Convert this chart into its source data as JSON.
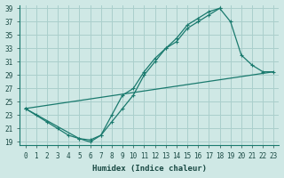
{
  "xlabel": "Humidex (Indice chaleur)",
  "bg_color": "#cfe8e5",
  "grid_color": "#aacfcc",
  "line_color": "#1a7a6e",
  "xlim": [
    -0.5,
    23.5
  ],
  "ylim": [
    18.5,
    39.5
  ],
  "xticks": [
    0,
    1,
    2,
    3,
    4,
    5,
    6,
    7,
    8,
    9,
    10,
    11,
    12,
    13,
    14,
    15,
    16,
    17,
    18,
    19,
    20,
    21,
    22,
    23
  ],
  "yticks": [
    19,
    21,
    23,
    25,
    27,
    29,
    31,
    33,
    35,
    37,
    39
  ],
  "line1_x": [
    0,
    1,
    2,
    3,
    4,
    5,
    6,
    7,
    8,
    9,
    10,
    11,
    12,
    13,
    14,
    15,
    16,
    17,
    18
  ],
  "line1_y": [
    24,
    23,
    22,
    21,
    20,
    19.5,
    19.3,
    20,
    22,
    24,
    26,
    29,
    31,
    33,
    34,
    36,
    37,
    38,
    39
  ],
  "line2_x": [
    0,
    5,
    6,
    7,
    8,
    9,
    10,
    11,
    12,
    13,
    14,
    15,
    16,
    17,
    18,
    19,
    20,
    21,
    22,
    23
  ],
  "line2_y": [
    24,
    19.5,
    19,
    20,
    23,
    26,
    27,
    29.5,
    31.5,
    33,
    34.5,
    36.5,
    37.5,
    38.5,
    39,
    37,
    32,
    30.5,
    29.5,
    29.5
  ],
  "line3_x": [
    0,
    23
  ],
  "line3_y": [
    24,
    29.5
  ]
}
